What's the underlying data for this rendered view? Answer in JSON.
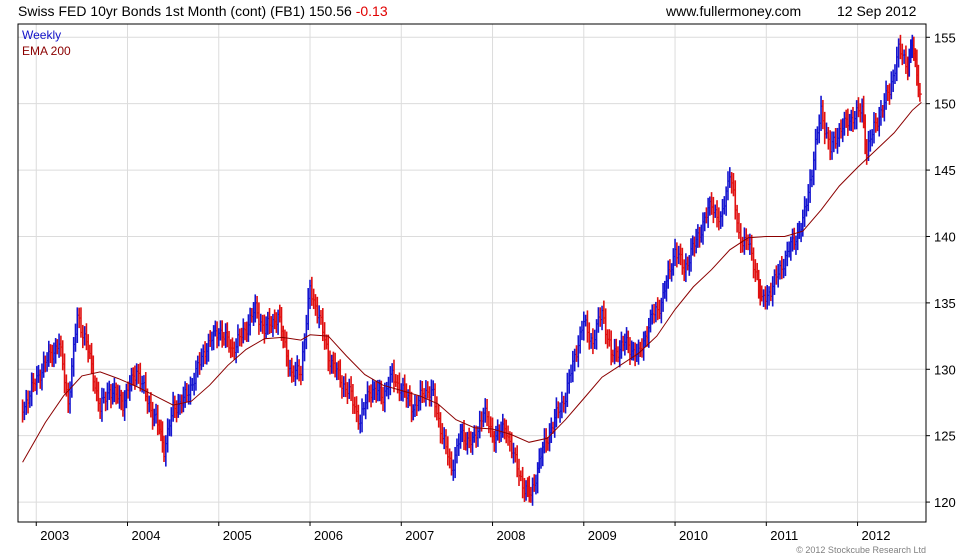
{
  "header": {
    "title": "Swiss FED 10yr Bonds 1st Month (cont) (FB1)",
    "price": "150.56",
    "change": "-0.13",
    "site": "www.fullermoney.com",
    "date": "12 Sep 2012"
  },
  "legend": {
    "series_label": "Weekly",
    "ema_label": "EMA 200"
  },
  "footer": {
    "copyright": "© 2012 Stockcube Research Ltd"
  },
  "colors": {
    "up": "#1515d0",
    "down": "#e01010",
    "ema": "#8b0000",
    "grid": "#dcdcdc",
    "axis": "#000000"
  },
  "chart_data": {
    "type": "line",
    "title": "Swiss FED 10yr Bonds 1st Month (cont) (FB1)",
    "x_ticks": [
      "2003",
      "2004",
      "2005",
      "2006",
      "2007",
      "2008",
      "2009",
      "2010",
      "2011",
      "2012"
    ],
    "y_ticks": [
      120,
      125,
      130,
      135,
      140,
      145,
      150,
      155
    ],
    "ylim": [
      118.5,
      156
    ],
    "xlim": [
      2002.8,
      2012.75
    ],
    "grid": true,
    "scale": "linear",
    "series": [
      {
        "name": "Weekly",
        "points": [
          [
            2002.85,
            127
          ],
          [
            2002.95,
            128.5
          ],
          [
            2003.1,
            130.5
          ],
          [
            2003.25,
            132
          ],
          [
            2003.35,
            127.5
          ],
          [
            2003.45,
            134
          ],
          [
            2003.55,
            132
          ],
          [
            2003.7,
            127
          ],
          [
            2003.8,
            128.5
          ],
          [
            2003.95,
            127.5
          ],
          [
            2004.1,
            130
          ],
          [
            2004.2,
            128
          ],
          [
            2004.35,
            125.5
          ],
          [
            2004.4,
            124
          ],
          [
            2004.5,
            127
          ],
          [
            2004.65,
            128
          ],
          [
            2004.85,
            131.5
          ],
          [
            2005.0,
            133
          ],
          [
            2005.15,
            131.5
          ],
          [
            2005.25,
            132.5
          ],
          [
            2005.4,
            134.5
          ],
          [
            2005.5,
            133
          ],
          [
            2005.65,
            134
          ],
          [
            2005.8,
            129.5
          ],
          [
            2005.9,
            130
          ],
          [
            2006.0,
            136
          ],
          [
            2006.1,
            134
          ],
          [
            2006.2,
            131
          ],
          [
            2006.35,
            129
          ],
          [
            2006.45,
            128
          ],
          [
            2006.55,
            126
          ],
          [
            2006.65,
            128.5
          ],
          [
            2006.8,
            128
          ],
          [
            2006.9,
            129.5
          ],
          [
            2007.0,
            128.5
          ],
          [
            2007.15,
            127
          ],
          [
            2007.25,
            128.5
          ],
          [
            2007.35,
            128
          ],
          [
            2007.45,
            125
          ],
          [
            2007.55,
            122.5
          ],
          [
            2007.65,
            125
          ],
          [
            2007.8,
            124.5
          ],
          [
            2007.9,
            127
          ],
          [
            2008.0,
            125
          ],
          [
            2008.15,
            125.5
          ],
          [
            2008.25,
            123
          ],
          [
            2008.35,
            121
          ],
          [
            2008.42,
            120.5
          ],
          [
            2008.55,
            124
          ],
          [
            2008.7,
            126.5
          ],
          [
            2008.8,
            128
          ],
          [
            2008.9,
            131
          ],
          [
            2009.0,
            133.5
          ],
          [
            2009.1,
            132
          ],
          [
            2009.2,
            134.5
          ],
          [
            2009.3,
            131
          ],
          [
            2009.45,
            132
          ],
          [
            2009.6,
            131
          ],
          [
            2009.75,
            134
          ],
          [
            2009.85,
            135
          ],
          [
            2010.0,
            139
          ],
          [
            2010.1,
            137.5
          ],
          [
            2010.25,
            140
          ],
          [
            2010.4,
            142.5
          ],
          [
            2010.5,
            141
          ],
          [
            2010.6,
            145
          ],
          [
            2010.7,
            140
          ],
          [
            2010.8,
            139.5
          ],
          [
            2010.9,
            137
          ],
          [
            2010.95,
            135
          ],
          [
            2011.05,
            136
          ],
          [
            2011.15,
            137.5
          ],
          [
            2011.25,
            139
          ],
          [
            2011.4,
            141
          ],
          [
            2011.5,
            145
          ],
          [
            2011.6,
            149.5
          ],
          [
            2011.7,
            146.5
          ],
          [
            2011.8,
            148
          ],
          [
            2011.95,
            149
          ],
          [
            2012.05,
            149.5
          ],
          [
            2012.1,
            146.5
          ],
          [
            2012.2,
            148.5
          ],
          [
            2012.35,
            151
          ],
          [
            2012.45,
            154
          ],
          [
            2012.55,
            153
          ],
          [
            2012.6,
            154.5
          ],
          [
            2012.65,
            152
          ],
          [
            2012.7,
            150.56
          ]
        ]
      },
      {
        "name": "EMA 200",
        "points": [
          [
            2002.85,
            123
          ],
          [
            2003.1,
            126
          ],
          [
            2003.3,
            128
          ],
          [
            2003.5,
            129.5
          ],
          [
            2003.7,
            129.8
          ],
          [
            2003.9,
            129.3
          ],
          [
            2004.1,
            128.7
          ],
          [
            2004.3,
            128
          ],
          [
            2004.5,
            127.3
          ],
          [
            2004.7,
            127.6
          ],
          [
            2004.9,
            128.8
          ],
          [
            2005.1,
            130.3
          ],
          [
            2005.3,
            131.5
          ],
          [
            2005.5,
            132.3
          ],
          [
            2005.7,
            132.4
          ],
          [
            2005.9,
            132.2
          ],
          [
            2006.0,
            132.6
          ],
          [
            2006.2,
            132.5
          ],
          [
            2006.4,
            131
          ],
          [
            2006.6,
            129.6
          ],
          [
            2006.8,
            128.8
          ],
          [
            2007.0,
            128.4
          ],
          [
            2007.2,
            128
          ],
          [
            2007.4,
            127.4
          ],
          [
            2007.6,
            126.2
          ],
          [
            2007.8,
            125.6
          ],
          [
            2008.0,
            125.5
          ],
          [
            2008.2,
            125.1
          ],
          [
            2008.4,
            124.5
          ],
          [
            2008.6,
            124.8
          ],
          [
            2008.8,
            126.2
          ],
          [
            2009.0,
            127.8
          ],
          [
            2009.2,
            129.4
          ],
          [
            2009.4,
            130.3
          ],
          [
            2009.6,
            131.2
          ],
          [
            2009.8,
            132.5
          ],
          [
            2010.0,
            134.5
          ],
          [
            2010.2,
            136.2
          ],
          [
            2010.4,
            137.5
          ],
          [
            2010.6,
            139
          ],
          [
            2010.8,
            139.9
          ],
          [
            2011.0,
            140
          ],
          [
            2011.2,
            140
          ],
          [
            2011.4,
            140.4
          ],
          [
            2011.6,
            142
          ],
          [
            2011.8,
            143.8
          ],
          [
            2012.0,
            145.2
          ],
          [
            2012.2,
            146.5
          ],
          [
            2012.4,
            147.8
          ],
          [
            2012.6,
            149.5
          ],
          [
            2012.7,
            150.1
          ]
        ]
      }
    ]
  }
}
